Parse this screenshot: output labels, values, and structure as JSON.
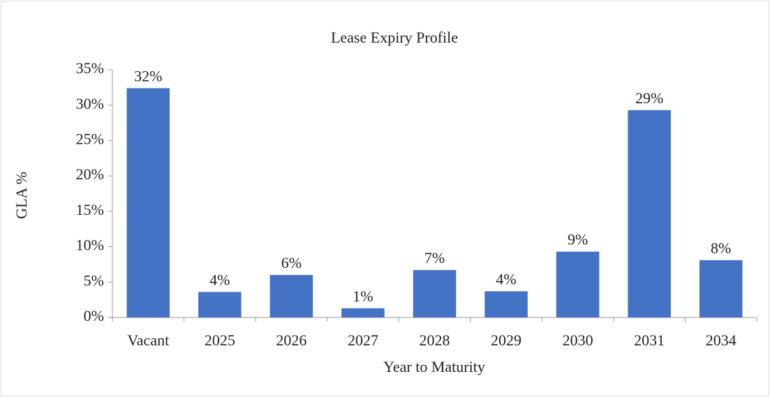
{
  "chart_data": {
    "type": "bar",
    "title": "Lease Expiry Profile",
    "x_label": "Year to Maturity",
    "y_label": "GLA %",
    "categories": [
      "Vacant",
      "2025",
      "2026",
      "2027",
      "2028",
      "2029",
      "2030",
      "2031",
      "2034"
    ],
    "values": [
      32.4,
      3.6,
      6.0,
      1.3,
      6.7,
      3.7,
      9.3,
      29.3,
      8.1
    ],
    "value_labels": [
      "32%",
      "4%",
      "6%",
      "1%",
      "7%",
      "4%",
      "9%",
      "29%",
      "8%"
    ],
    "color": "#4472c4",
    "ylim": [
      0,
      35
    ],
    "yticks": [
      {
        "value": 0,
        "label": "0%"
      },
      {
        "value": 5,
        "label": "5%"
      },
      {
        "value": 10,
        "label": "10%"
      },
      {
        "value": 15,
        "label": "15%"
      },
      {
        "value": 20,
        "label": "20%"
      },
      {
        "value": 25,
        "label": "25%"
      },
      {
        "value": 30,
        "label": "30%"
      },
      {
        "value": 35,
        "label": "35%"
      }
    ],
    "grid": false
  }
}
